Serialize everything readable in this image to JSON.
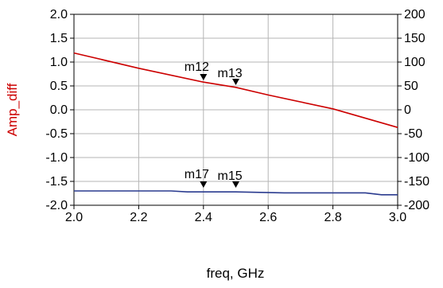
{
  "chart_data": {
    "type": "line",
    "xlabel": "freq, GHz",
    "ylabel_left": "Amp_diff",
    "ylabel_right": "",
    "x_ticks": [
      "2.0",
      "2.2",
      "2.4",
      "2.6",
      "2.8",
      "3.0"
    ],
    "x_tick_values": [
      2.0,
      2.2,
      2.4,
      2.6,
      2.8,
      3.0
    ],
    "y_left_ticks": [
      "2.0",
      "1.5",
      "1.0",
      "0.5",
      "0.0",
      "-0.5",
      "-1.0",
      "-1.5",
      "-2.0"
    ],
    "y_left_tick_values": [
      2.0,
      1.5,
      1.0,
      0.5,
      0.0,
      -0.5,
      -1.0,
      -1.5,
      -2.0
    ],
    "y_right_ticks": [
      "200",
      "150",
      "100",
      "50",
      "0",
      "-50",
      "-100",
      "-150",
      "-200"
    ],
    "y_right_tick_values": [
      200,
      150,
      100,
      50,
      0,
      -50,
      -100,
      -150,
      -200
    ],
    "xlim": [
      2.0,
      3.0
    ],
    "ylim_left": [
      -2.0,
      2.0
    ],
    "ylim_right": [
      -200,
      200
    ],
    "grid": true,
    "series": [
      {
        "axis": "left",
        "color": "#cc0000",
        "x": [
          2.0,
          2.2,
          2.4,
          2.5,
          2.6,
          2.8,
          3.0
        ],
        "y": [
          1.19,
          0.87,
          0.58,
          0.47,
          0.31,
          0.02,
          -0.37
        ]
      },
      {
        "axis": "right",
        "color": "#2a3b8f",
        "x": [
          2.0,
          2.1,
          2.2,
          2.3,
          2.35,
          2.5,
          2.65,
          2.8,
          2.9,
          2.95,
          3.0
        ],
        "y": [
          -170,
          -170,
          -170,
          -170,
          -172,
          -172,
          -174,
          -174,
          -174,
          -178,
          -178
        ]
      }
    ],
    "markers": [
      {
        "name": "m12",
        "x": 2.4,
        "y": 0.6,
        "axis": "left",
        "label_pos": "left"
      },
      {
        "name": "m13",
        "x": 2.5,
        "y": 0.5,
        "axis": "left",
        "label_pos": "right"
      },
      {
        "name": "m17",
        "x": 2.4,
        "y": -165,
        "axis": "right",
        "label_pos": "left"
      },
      {
        "name": "m15",
        "x": 2.5,
        "y": -165,
        "axis": "right",
        "label_pos": "right"
      }
    ]
  }
}
